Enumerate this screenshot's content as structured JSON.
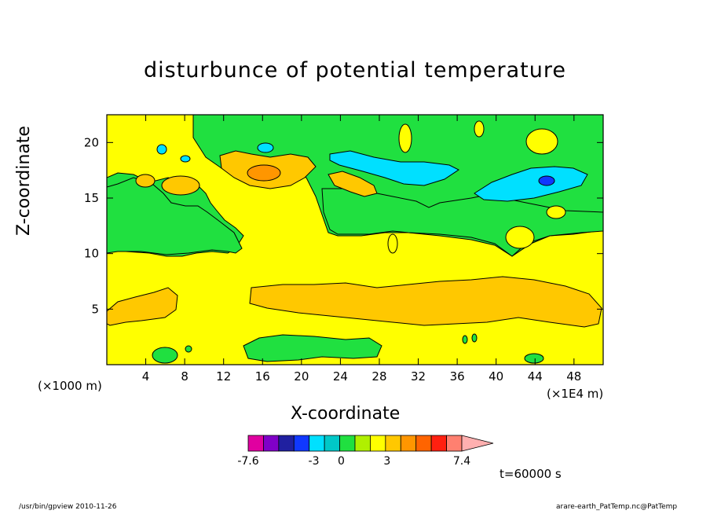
{
  "title": "disturbunce of potential temperature",
  "ylabel": "Z-coordinate",
  "xlabel": "X-coordinate",
  "xunit_left": "(×1000 m)",
  "xunit_right": "(×1E4 m)",
  "time_label": "t=60000 s",
  "footer_left": "/usr/bin/gpview   2010-11-26",
  "footer_right": "arare-earth_PatTemp.nc@PatTemp",
  "chart_data": {
    "type": "heatmap",
    "title": "disturbunce of potential temperature",
    "xlabel": "X-coordinate",
    "ylabel": "Z-coordinate",
    "xlim": [
      0,
      51
    ],
    "ylim": [
      0,
      22.5
    ],
    "xticks": [
      4,
      8,
      12,
      16,
      20,
      24,
      28,
      32,
      36,
      40,
      44,
      48
    ],
    "yticks": [
      5,
      10,
      15,
      20
    ],
    "colorbar": {
      "colors": [
        "#e000a0",
        "#8000c8",
        "#2020a0",
        "#1038ff",
        "#00e0ff",
        "#00c8c8",
        "#20e040",
        "#b0f000",
        "#ffff00",
        "#ffc800",
        "#ff9600",
        "#ff6400",
        "#ff2010",
        "#ff8070",
        "#ffb0b0"
      ],
      "tick_labels": [
        "-7.6",
        "-3",
        "0",
        "3",
        "7.4"
      ],
      "tick_values": [
        -7.6,
        -3,
        0,
        3,
        7.4
      ]
    },
    "regions": [
      {
        "level": "green (-1..0)",
        "shape": "upper band",
        "x_range": [
          0,
          51
        ],
        "z_range": [
          11,
          22.5
        ]
      },
      {
        "level": "yellow (0..1)",
        "shape": "main background",
        "x_range": [
          0,
          51
        ],
        "z_range": [
          0,
          11
        ]
      },
      {
        "level": "orange (1..2)",
        "shape": "elongated band",
        "x_range": [
          15,
          51
        ],
        "z_range": [
          4,
          8
        ]
      },
      {
        "level": "orange (1..2)",
        "shape": "left blob",
        "x_range": [
          0,
          7
        ],
        "z_range": [
          4,
          7
        ]
      },
      {
        "level": "cyan (-2..-1)",
        "shape": "elongated blob",
        "x_range": [
          23,
          36
        ],
        "z_range": [
          17,
          20
        ]
      },
      {
        "level": "cyan (-2..-1)",
        "shape": "blob",
        "x_range": [
          38,
          49
        ],
        "z_range": [
          15,
          18
        ]
      },
      {
        "level": "blue (-3..-2)",
        "shape": "small core",
        "x_range": [
          44.5,
          46
        ],
        "z_range": [
          16.5,
          17.5
        ]
      },
      {
        "level": "orange (1..2)",
        "shape": "upper blobs",
        "x_range": [
          11,
          28
        ],
        "z_range": [
          15,
          20
        ]
      }
    ]
  }
}
